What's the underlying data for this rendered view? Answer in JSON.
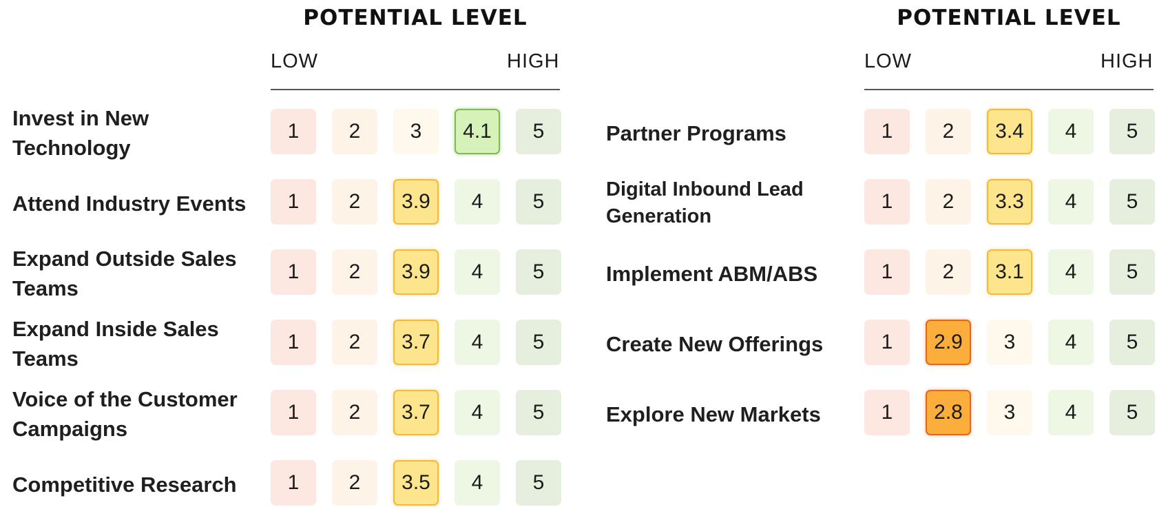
{
  "chart_data": [
    {
      "type": "table",
      "title": "POTENTIAL LEVEL",
      "scale_low_label": "LOW",
      "scale_high_label": "HIGH",
      "scale": [
        1,
        2,
        3,
        4,
        5
      ],
      "rows": [
        {
          "label": "Invest in New Technology",
          "value": 4.1,
          "highlight": "green"
        },
        {
          "label": "Attend Industry Events",
          "value": 3.9,
          "highlight": "yellow"
        },
        {
          "label": "Expand Outside Sales Teams",
          "value": 3.9,
          "highlight": "yellow"
        },
        {
          "label": "Expand Inside Sales Teams",
          "value": 3.7,
          "highlight": "yellow"
        },
        {
          "label": "Voice of the Customer Campaigns",
          "value": 3.7,
          "highlight": "yellow"
        },
        {
          "label": "Competitive Research",
          "value": 3.5,
          "highlight": "yellow"
        }
      ]
    },
    {
      "type": "table",
      "title": "POTENTIAL LEVEL",
      "scale_low_label": "LOW",
      "scale_high_label": "HIGH",
      "scale": [
        1,
        2,
        3,
        4,
        5
      ],
      "rows": [
        {
          "label": "Partner Programs",
          "value": 3.4,
          "highlight": "yellow"
        },
        {
          "label": "Digital Inbound Lead Generation",
          "value": 3.3,
          "highlight": "yellow"
        },
        {
          "label": "Implement ABM/ABS",
          "value": 3.1,
          "highlight": "yellow"
        },
        {
          "label": "Create New Offerings",
          "value": 2.9,
          "highlight": "orange"
        },
        {
          "label": "Explore New Markets",
          "value": 2.8,
          "highlight": "orange"
        }
      ]
    }
  ],
  "colors": {
    "scale_1": "#fde8e1",
    "scale_2": "#fef3e7",
    "scale_3": "#fef9ec",
    "scale_4": "#eef6e4",
    "scale_5": "#e6eedd",
    "highlight_yellow": "#fde58e",
    "highlight_orange": "#fbae3c",
    "highlight_green": "#d7f2b8"
  }
}
